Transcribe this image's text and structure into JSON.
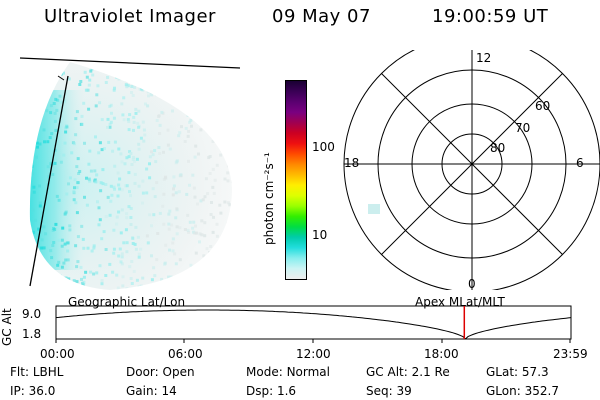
{
  "header": {
    "instrument": "Ultraviolet Imager",
    "date": "09 May 07",
    "time": "19:00:59 UT"
  },
  "colorbar": {
    "unit_label": "photon cm⁻²s⁻¹",
    "ticks": [
      "100",
      "10"
    ],
    "colors": [
      "#1a0033",
      "#3a0055",
      "#5a0070",
      "#7a0080",
      "#a00050",
      "#cc0022",
      "#ee1010",
      "#ff4a00",
      "#ff8800",
      "#ffbb00",
      "#ffee00",
      "#ddff00",
      "#99ff00",
      "#33ee00",
      "#00dd44",
      "#00ccaa",
      "#22dddd",
      "#88eeee",
      "#ccf4f4",
      "#eeeeee"
    ]
  },
  "polar_plot": {
    "mlt_labels": {
      "top": "12",
      "left": "18",
      "right": "6",
      "bottom": "0"
    },
    "lat_labels": [
      "60",
      "70",
      "80"
    ]
  },
  "map_labels": {
    "geographic": "Geographic Lat/Lon",
    "apex": "Apex MLat/MLT"
  },
  "orbit": {
    "axis_label": "GC Alt",
    "y_ticks": [
      "9.0",
      "1.8"
    ],
    "x_ticks": [
      "00:00",
      "06:00",
      "12:00",
      "18:00",
      "23:59"
    ],
    "marker_time": "19:00:59",
    "marker_color": "#dd0000"
  },
  "status": {
    "row1": [
      {
        "label": "Flt:",
        "value": "LBHL"
      },
      {
        "label": "Door:",
        "value": "Open"
      },
      {
        "label": "Mode:",
        "value": "Normal"
      },
      {
        "label": "GC Alt:",
        "value": "2.1 Re"
      },
      {
        "label": "GLat:",
        "value": "57.3"
      }
    ],
    "row2": [
      {
        "label": "IP:",
        "value": "36.0"
      },
      {
        "label": "Gain:",
        "value": "14"
      },
      {
        "label": "Dsp:",
        "value": "1.6"
      },
      {
        "label": "Seq:",
        "value": "39"
      },
      {
        "label": "GLon:",
        "value": "352.7"
      }
    ]
  }
}
